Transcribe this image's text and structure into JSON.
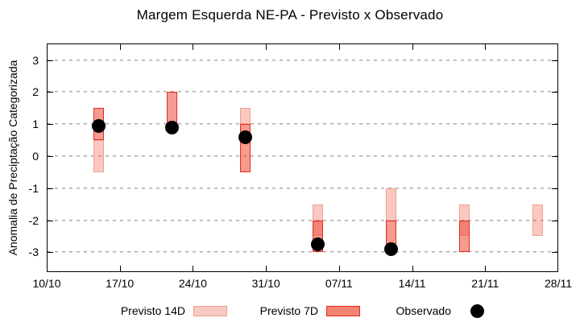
{
  "title": "Margem Esquerda NE-PA - Previsto x Observado",
  "chart_data": {
    "type": "bar",
    "title": "Margem Esquerda NE-PA - Previsto x Observado",
    "xlabel": "",
    "ylabel": "Anomalia de Preciptação Categorizada",
    "grid": "horizontal dotted",
    "legend_position": "below",
    "x_axis": {
      "tick_labels": [
        "10/10",
        "17/10",
        "24/10",
        "31/10",
        "07/11",
        "14/11",
        "21/11",
        "28/11"
      ],
      "tick_days": [
        0,
        7,
        14,
        21,
        28,
        35,
        42,
        49
      ],
      "range_days": [
        0,
        49
      ]
    },
    "y_axis": {
      "ticks": [
        3,
        2,
        1,
        0,
        -1,
        -2,
        -3
      ],
      "range": [
        -3.62,
        3.52
      ]
    },
    "series": [
      {
        "name": "Previsto 14D",
        "type": "box",
        "fill": "rgba(236,72,52,0.30)",
        "border": "#EFA090",
        "boxes": [
          {
            "date": "15/10",
            "day": 5,
            "from": -0.5,
            "to": 0.5
          },
          {
            "date": "29/10",
            "day": 19,
            "from": 1.0,
            "to": 1.5
          },
          {
            "date": "05/11",
            "day": 26,
            "from": -2.5,
            "to": -1.5
          },
          {
            "date": "12/11",
            "day": 33,
            "from": -2.0,
            "to": -1.0
          },
          {
            "date": "19/11",
            "day": 40,
            "from": -2.5,
            "to": -1.5
          },
          {
            "date": "26/11",
            "day": 47,
            "from": -2.5,
            "to": -1.5
          }
        ]
      },
      {
        "name": "Previsto 7D",
        "type": "box",
        "fill": "rgba(236,72,52,0.55)",
        "border": "#E8281C",
        "boxes": [
          {
            "date": "15/10",
            "day": 5,
            "from": 0.5,
            "to": 1.5
          },
          {
            "date": "22/10",
            "day": 12,
            "from": 1.0,
            "to": 2.0
          },
          {
            "date": "29/10",
            "day": 19,
            "from": -0.5,
            "to": 1.0
          },
          {
            "date": "05/11",
            "day": 26,
            "from": -3.0,
            "to": -2.0
          },
          {
            "date": "12/11",
            "day": 33,
            "from": -3.0,
            "to": -2.0
          },
          {
            "date": "19/11",
            "day": 40,
            "from": -3.0,
            "to": -2.0
          }
        ]
      },
      {
        "name": "Observado",
        "type": "scatter",
        "color": "#000000",
        "points": [
          {
            "date": "15/10",
            "day": 5,
            "y": 0.95
          },
          {
            "date": "22/10",
            "day": 12,
            "y": 0.9
          },
          {
            "date": "29/10",
            "day": 19,
            "y": 0.6
          },
          {
            "date": "05/11",
            "day": 26,
            "y": -2.75
          },
          {
            "date": "12/11",
            "day": 33,
            "y": -2.9
          }
        ]
      }
    ]
  },
  "colors": {
    "previsto_14d_fill": "#F9C9C1",
    "previsto_7d_fill": "#F28475",
    "overlap_fill": "#EE5A45",
    "observado": "#000000",
    "gridline": "#A9A9A9",
    "axis": "#000000"
  },
  "legend": {
    "items": [
      {
        "label": "Previsto 14D",
        "marker": "box-light"
      },
      {
        "label": "Previsto 7D",
        "marker": "box-red"
      },
      {
        "label": "Observado",
        "marker": "dot-black"
      }
    ]
  }
}
